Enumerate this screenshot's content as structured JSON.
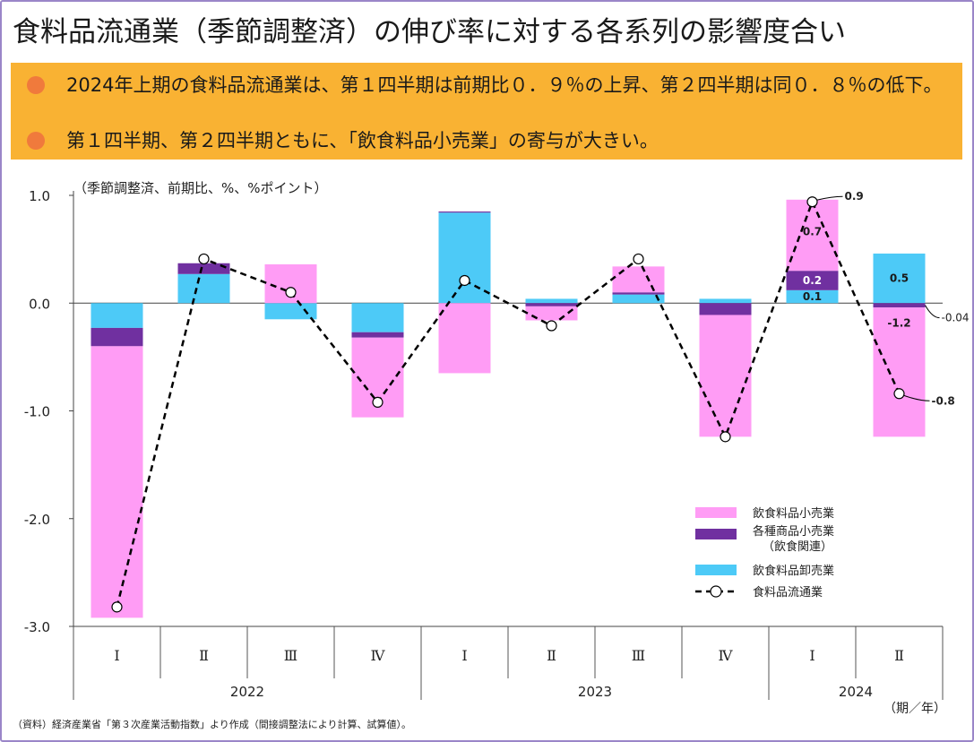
{
  "title": "食料品流通業（季節調整済）の伸び率に対する各系列の影響度合い",
  "summary": {
    "bullet1": "2024年上期の食料品流通業は、第１四半期は前期比０．９％の上昇、第２四半期は同０．８％の低下。",
    "bullet2": "第１四半期、第２四半期ともに、「飲食料品小売業」の寄与が大きい。"
  },
  "source": "（資料）経済産業省「第３次産業活動指数」より作成（間接調整法により計算、試算値）。",
  "colors": {
    "retail_food": "#ff9cf5",
    "general_merch": "#7030a0",
    "wholesale_food": "#4dcaf7",
    "line": "#000000",
    "summary_bg": "#f9b233",
    "bullet": "#f07a3c"
  },
  "chart_data": {
    "type": "bar",
    "stacked": true,
    "unit_note": "（季節調整済、前期比、%、%ポイント）",
    "xlabel": "（期／年）",
    "ylim": [
      -3.0,
      1.0
    ],
    "yticks": [
      "1.0",
      "0.0",
      "-1.0",
      "-2.0",
      "-3.0"
    ],
    "ytick_values": [
      1.0,
      0.0,
      -1.0,
      -2.0,
      -3.0
    ],
    "categories": [
      "Ⅰ",
      "Ⅱ",
      "Ⅲ",
      "Ⅳ",
      "Ⅰ",
      "Ⅱ",
      "Ⅲ",
      "Ⅳ",
      "Ⅰ",
      "Ⅱ"
    ],
    "years": [
      {
        "label": "2022",
        "count": 4
      },
      {
        "label": "2023",
        "count": 4
      },
      {
        "label": "2024",
        "count": 2
      }
    ],
    "series": [
      {
        "name": "飲食料品小売業",
        "color": "#ff9cf5",
        "values": [
          -2.52,
          0.0,
          0.36,
          -0.74,
          -0.65,
          -0.13,
          0.24,
          -1.13,
          0.66,
          -1.2
        ]
      },
      {
        "name": "各種商品小売業（飲食関連）",
        "color": "#7030a0",
        "values": [
          -0.17,
          0.1,
          0.0,
          -0.05,
          0.01,
          -0.03,
          0.02,
          -0.11,
          0.18,
          -0.04
        ]
      },
      {
        "name": "飲食料品卸売業",
        "color": "#4dcaf7",
        "values": [
          -0.23,
          0.27,
          -0.15,
          -0.27,
          0.84,
          0.04,
          0.08,
          0.04,
          0.12,
          0.46
        ]
      }
    ],
    "line": {
      "name": "食料品流通業",
      "values": [
        -2.82,
        0.41,
        0.1,
        -0.92,
        0.21,
        -0.21,
        0.41,
        -1.24,
        0.94,
        -0.84
      ]
    },
    "legend": [
      "飲食料品小売業",
      "各種商品小売業（飲食関連）",
      "飲食料品卸売業",
      "食料品流通業"
    ],
    "legend_labels": {
      "retail": "飲食料品小売業",
      "general_l1": "各種商品小売業",
      "general_l2": "（飲食関連）",
      "wholesale": "飲食料品卸売業",
      "line": "食料品流通業"
    },
    "legend_position": "bottom-right",
    "annotations": {
      "q1_2024_total": "0.9",
      "q1_2024_retail": "0.7",
      "q1_2024_general": "0.2",
      "q1_2024_wholesale": "0.1",
      "q2_2024_wholesale": "0.5",
      "q2_2024_retail": "-1.2",
      "q2_2024_general": "-0.04",
      "q2_2024_total": "-0.8"
    }
  }
}
